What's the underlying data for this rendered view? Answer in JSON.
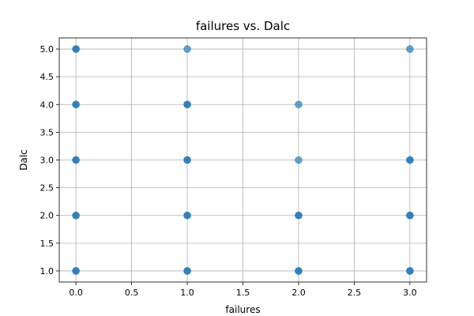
{
  "chart_data": {
    "type": "scatter",
    "title": "failures vs. Dalc",
    "xlabel": "failures",
    "ylabel": "Dalc",
    "xlim": [
      -0.15,
      3.15
    ],
    "ylim": [
      0.8,
      5.2
    ],
    "x_ticks": [
      0.0,
      0.5,
      1.0,
      1.5,
      2.0,
      2.5,
      3.0
    ],
    "y_ticks": [
      1.0,
      1.5,
      2.0,
      2.5,
      3.0,
      3.5,
      4.0,
      4.5,
      5.0
    ],
    "x_tick_labels": [
      "0.0",
      "0.5",
      "1.0",
      "1.5",
      "2.0",
      "2.5",
      "3.0"
    ],
    "y_tick_labels": [
      "1.0",
      "1.5",
      "2.0",
      "2.5",
      "3.0",
      "3.5",
      "4.0",
      "4.5",
      "5.0"
    ],
    "grid": true,
    "color": "#1f77b4",
    "points": [
      {
        "x": 0,
        "y": 1,
        "density": "high"
      },
      {
        "x": 0,
        "y": 2,
        "density": "high"
      },
      {
        "x": 0,
        "y": 3,
        "density": "high"
      },
      {
        "x": 0,
        "y": 4,
        "density": "high"
      },
      {
        "x": 0,
        "y": 5,
        "density": "high"
      },
      {
        "x": 1,
        "y": 1,
        "density": "high"
      },
      {
        "x": 1,
        "y": 2,
        "density": "high"
      },
      {
        "x": 1,
        "y": 3,
        "density": "high"
      },
      {
        "x": 1,
        "y": 4,
        "density": "high"
      },
      {
        "x": 1,
        "y": 5,
        "density": "low"
      },
      {
        "x": 2,
        "y": 1,
        "density": "high"
      },
      {
        "x": 2,
        "y": 2,
        "density": "high"
      },
      {
        "x": 2,
        "y": 3,
        "density": "low"
      },
      {
        "x": 2,
        "y": 4,
        "density": "low"
      },
      {
        "x": 3,
        "y": 1,
        "density": "high"
      },
      {
        "x": 3,
        "y": 2,
        "density": "high"
      },
      {
        "x": 3,
        "y": 3,
        "density": "high"
      },
      {
        "x": 3,
        "y": 5,
        "density": "low"
      }
    ]
  }
}
